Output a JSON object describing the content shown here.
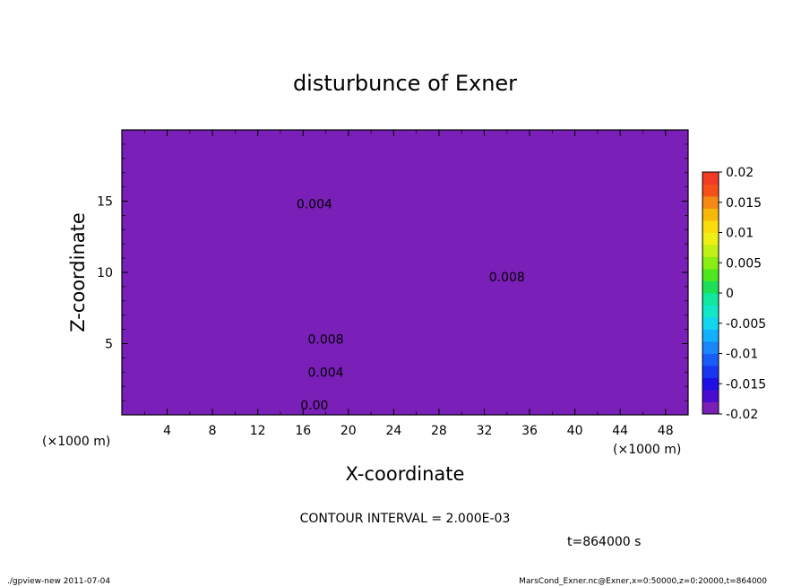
{
  "chart_data": {
    "type": "contour",
    "title": "disturbunce of Exner",
    "xlabel": "X-coordinate",
    "ylabel": "Z-coordinate",
    "x_unit": "(×1000 m)",
    "y_unit": "(×1000 m)",
    "xlim": [
      0,
      50
    ],
    "ylim": [
      0,
      20
    ],
    "x_ticks": [
      4,
      8,
      12,
      16,
      20,
      24,
      28,
      32,
      36,
      40,
      44,
      48
    ],
    "y_ticks": [
      5,
      10,
      15
    ],
    "colorbar": {
      "ticks": [
        "0.02",
        "0.015",
        "0.01",
        "0.005",
        "0",
        "-0.005",
        "-0.01",
        "-0.015",
        "-0.02"
      ],
      "range": [
        -0.02,
        0.02
      ],
      "levels": [
        -0.02,
        -0.018,
        -0.016,
        -0.014,
        -0.012,
        -0.01,
        -0.008,
        -0.006,
        -0.004,
        -0.002,
        0,
        0.002,
        0.004,
        0.006,
        0.008,
        0.01,
        0.012,
        0.014,
        0.016,
        0.018,
        0.02
      ],
      "colors": [
        "#7a1fb8",
        "#4a0bd0",
        "#1f10e6",
        "#1636f2",
        "#1a5cf8",
        "#1a86fb",
        "#12b0ff",
        "#12d6f0",
        "#10e8c8",
        "#10e8a0",
        "#1ee058",
        "#4ee81e",
        "#88ee14",
        "#c0f014",
        "#ecf014",
        "#fadc0c",
        "#f8b80a",
        "#f48a14",
        "#f45018",
        "#f23b23",
        "#f8808a"
      ]
    },
    "contour_labels": [
      "0.004",
      "0.008",
      "0.008",
      "0.004",
      "0.00"
    ],
    "contour_interval_text": "CONTOUR INTERVAL = 2.000E-03",
    "time_text": "t=864000 s"
  },
  "footer": {
    "left": "./gpview-new 2011-07-04",
    "right": "MarsCond_Exner.nc@Exner,x=0:50000,z=0:20000,t=864000"
  }
}
